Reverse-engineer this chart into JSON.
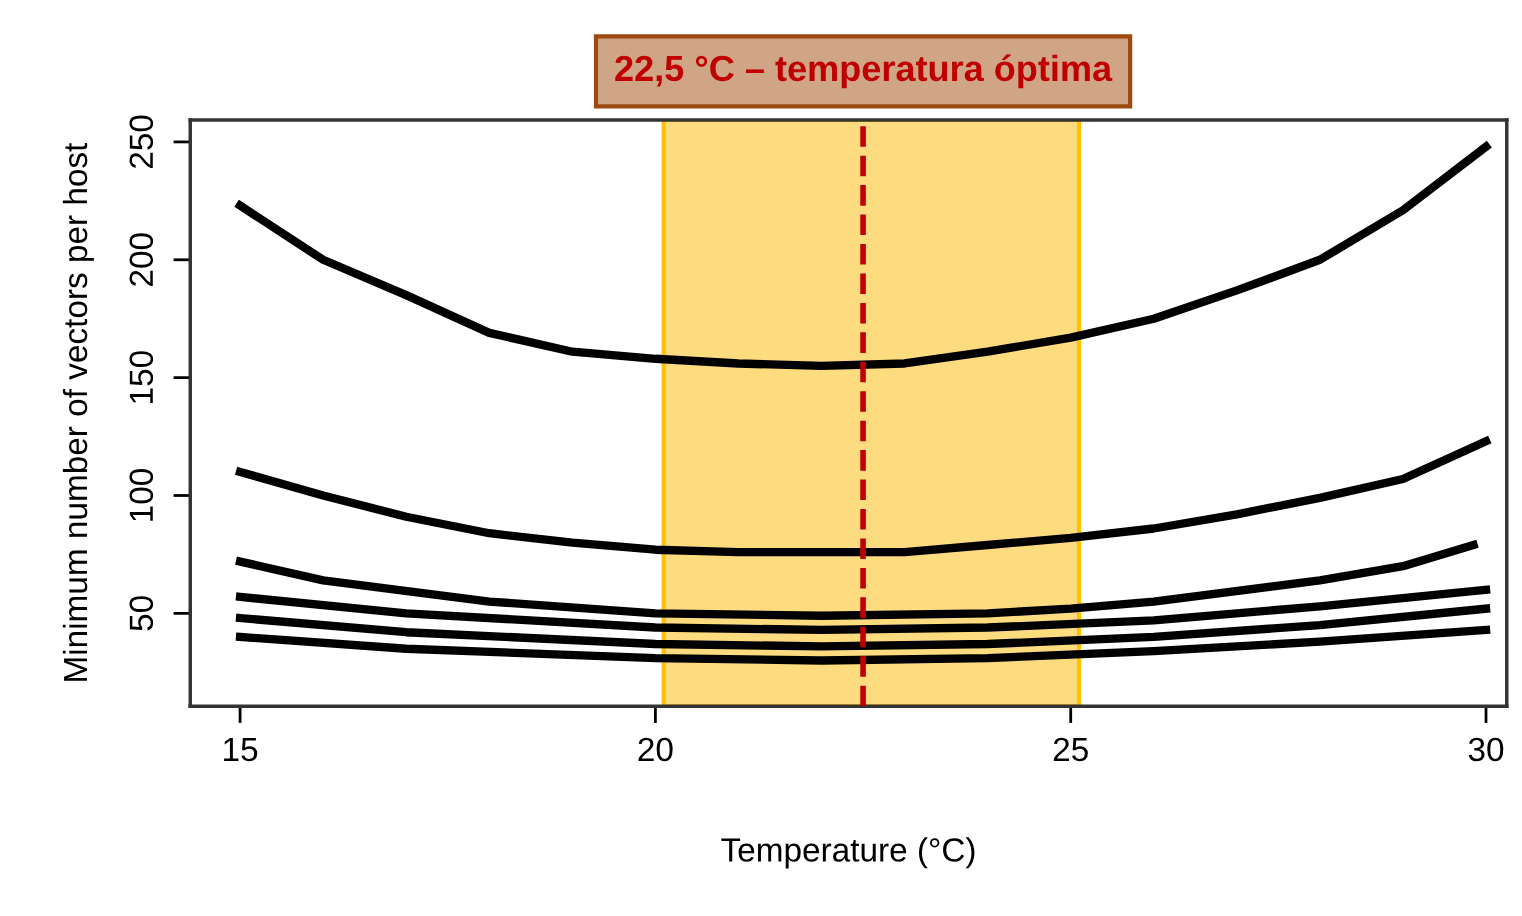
{
  "chart_data": {
    "type": "line",
    "xlabel": "Temperature (°C)",
    "ylabel": "Minimum number of vectors per host",
    "xlim": [
      14.4,
      30.25
    ],
    "ylim": [
      10.6,
      259.3
    ],
    "xticks": [
      15,
      20,
      25,
      30
    ],
    "yticks": [
      50,
      100,
      150,
      200,
      250
    ],
    "grid": false,
    "legend": false,
    "marker": "none",
    "line_style": "solid",
    "series": [
      {
        "color": "#000000",
        "x": [
          15,
          16,
          17,
          18,
          19,
          20,
          21,
          22,
          23,
          24,
          25,
          26,
          27,
          28,
          29,
          30
        ],
        "values": [
          223,
          200,
          185,
          169,
          161,
          158,
          156,
          155,
          156,
          161,
          167,
          175,
          187,
          200,
          221,
          248
        ]
      },
      {
        "color": "#000000",
        "x": [
          15,
          16,
          17,
          18,
          19,
          20,
          21,
          22,
          23,
          24,
          25,
          26,
          27,
          28,
          29,
          30
        ],
        "values": [
          110,
          100,
          91,
          84,
          80,
          77,
          76,
          76,
          76,
          79,
          82,
          86,
          92,
          99,
          107,
          123
        ]
      },
      {
        "color": "#000000",
        "x": [
          15,
          16,
          18,
          20,
          22,
          24,
          25,
          26,
          28,
          29,
          29.85
        ],
        "values": [
          72,
          64,
          55,
          50,
          49,
          50,
          52,
          55,
          64,
          70,
          79
        ]
      },
      {
        "color": "#000000",
        "x": [
          15,
          17,
          20,
          22,
          24,
          26,
          28,
          30
        ],
        "values": [
          57,
          50,
          44,
          43,
          44,
          47,
          53,
          60
        ]
      },
      {
        "color": "#000000",
        "x": [
          15,
          17,
          20,
          22,
          24,
          26,
          28,
          30
        ],
        "values": [
          48,
          42,
          37,
          36,
          37,
          40,
          45,
          52
        ]
      },
      {
        "color": "#000000",
        "x": [
          15,
          17,
          20,
          22,
          24,
          26,
          28,
          30
        ],
        "values": [
          40,
          35,
          31,
          30,
          31,
          34,
          38,
          43
        ]
      }
    ],
    "bands": [
      {
        "axis": "x",
        "from": 20.1,
        "to": 25.1,
        "color": "#fddc80"
      }
    ],
    "ref_lines": [
      {
        "axis": "x",
        "value": 22.5,
        "label": "22,5 °C – temperatura óptima",
        "color": "#c00000",
        "line_style": "dashed"
      }
    ]
  }
}
